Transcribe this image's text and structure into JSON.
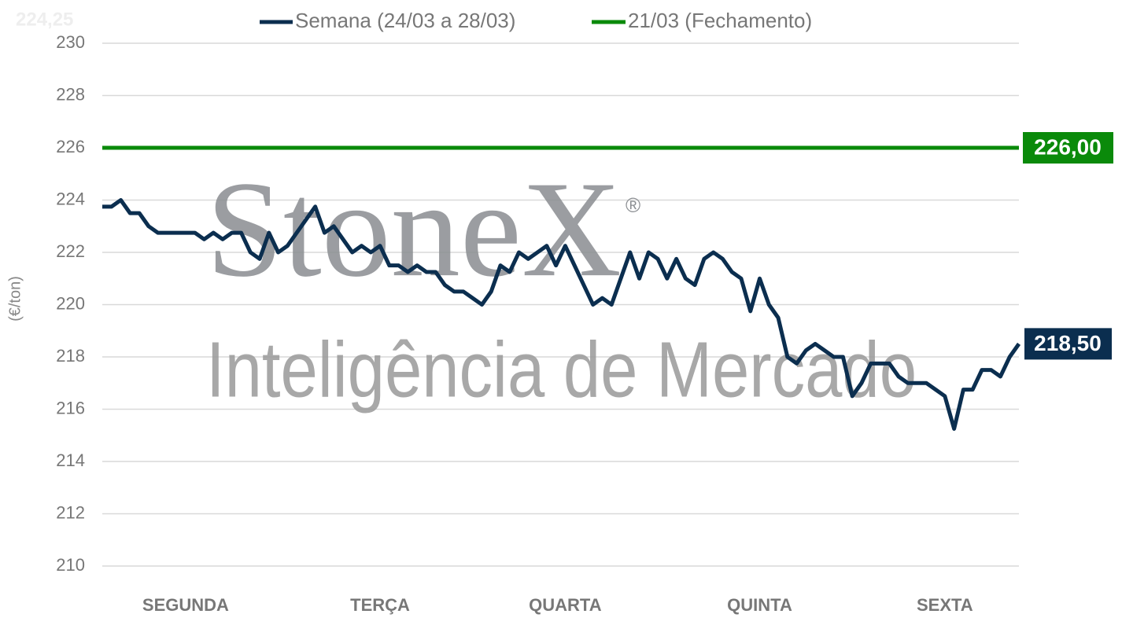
{
  "chart_data": {
    "type": "line",
    "ghost_label": "224,25",
    "watermark": {
      "brand": "StoneX",
      "registered": "®",
      "tagline": "Inteligência de Mercado"
    },
    "y_label": "(€/ton)",
    "ylim": [
      210,
      230
    ],
    "yticks": [
      210,
      212,
      214,
      216,
      218,
      220,
      222,
      224,
      226,
      228,
      230
    ],
    "grid": true,
    "categories": [
      null,
      null,
      null,
      null,
      null,
      null,
      null,
      null,
      null,
      "SEGUNDA",
      null,
      null,
      null,
      null,
      null,
      null,
      null,
      null,
      null,
      null,
      null,
      null,
      null,
      null,
      null,
      null,
      null,
      null,
      null,
      null,
      "TERÇA",
      null,
      null,
      null,
      null,
      null,
      null,
      null,
      null,
      null,
      null,
      null,
      null,
      null,
      null,
      null,
      null,
      null,
      null,
      null,
      "QUARTA",
      null,
      null,
      null,
      null,
      null,
      null,
      null,
      null,
      null,
      null,
      null,
      null,
      null,
      null,
      null,
      null,
      null,
      null,
      null,
      null,
      "QUINTA",
      null,
      null,
      null,
      null,
      null,
      null,
      null,
      null,
      null,
      null,
      null,
      null,
      null,
      null,
      null,
      null,
      null,
      null,
      null,
      "SEXTA",
      null,
      null,
      null,
      null,
      null,
      null,
      null,
      null
    ],
    "series": [
      {
        "name": "Semana (24/03 a 28/03)",
        "color": "#0b2e4f",
        "end_label": "218,50",
        "values": [
          223.75,
          223.75,
          224.0,
          223.5,
          223.5,
          223.0,
          222.75,
          222.75,
          222.75,
          222.75,
          222.75,
          222.5,
          222.75,
          222.5,
          222.75,
          222.75,
          222.0,
          221.75,
          222.75,
          222.0,
          222.25,
          222.75,
          223.25,
          223.75,
          222.75,
          223.0,
          222.5,
          222.0,
          222.25,
          222.0,
          222.25,
          221.5,
          221.5,
          221.25,
          221.5,
          221.25,
          221.25,
          220.75,
          220.5,
          220.5,
          220.25,
          220.0,
          220.5,
          221.5,
          221.25,
          222.0,
          221.75,
          222.0,
          222.25,
          221.5,
          222.25,
          221.5,
          220.75,
          220.0,
          220.25,
          220.0,
          221.0,
          222.0,
          221.0,
          222.0,
          221.75,
          221.0,
          221.75,
          221.0,
          220.75,
          221.75,
          222.0,
          221.75,
          221.25,
          221.0,
          219.75,
          221.0,
          220.0,
          219.5,
          218.0,
          217.75,
          218.25,
          218.5,
          218.25,
          218.0,
          218.0,
          216.5,
          217.0,
          217.75,
          217.75,
          217.75,
          217.25,
          217.0,
          217.0,
          217.0,
          216.75,
          216.5,
          215.25,
          216.75,
          216.75,
          217.5,
          217.5,
          217.25,
          218.0,
          218.5
        ]
      }
    ],
    "reference": {
      "name": "21/03 (Fechamento)",
      "color": "#0a8a0a",
      "value": 226,
      "value_label": "226,00"
    }
  }
}
